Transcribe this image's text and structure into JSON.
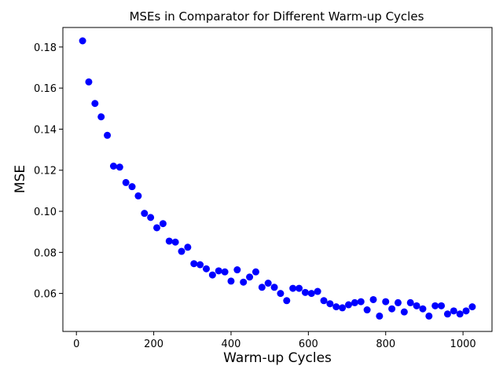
{
  "chart_data": {
    "type": "scatter",
    "title": "MSEs in Comparator for Different Warm-up Cycles",
    "xlabel": "Warm-up Cycles",
    "ylabel": "MSE",
    "xlim": [
      -35,
      1075
    ],
    "ylim": [
      0.0415,
      0.1895
    ],
    "xticks": [
      0,
      200,
      400,
      600,
      800,
      1000
    ],
    "xtick_labels": [
      "0",
      "200",
      "400",
      "600",
      "800",
      "1000"
    ],
    "yticks": [
      0.06,
      0.08,
      0.1,
      0.12,
      0.14,
      0.16,
      0.18
    ],
    "ytick_labels": [
      "0.06",
      "0.08",
      "0.10",
      "0.12",
      "0.14",
      "0.16",
      "0.18"
    ],
    "grid": false,
    "marker_color": "#0000ff",
    "series": [
      {
        "x": [
          16,
          32,
          48,
          64,
          80,
          96,
          112,
          128,
          144,
          160,
          176,
          192,
          208,
          224,
          240,
          256,
          272,
          288,
          304,
          320,
          336,
          352,
          368,
          384,
          400,
          416,
          432,
          448,
          464,
          480,
          496,
          512,
          528,
          544,
          560,
          576,
          592,
          608,
          624,
          640,
          656,
          672,
          688,
          704,
          720,
          736,
          752,
          768,
          784,
          800,
          816,
          832,
          848,
          864,
          880,
          896,
          912,
          928,
          944,
          960,
          976,
          992,
          1008,
          1024
        ],
        "y": [
          0.183,
          0.163,
          0.1525,
          0.146,
          0.137,
          0.122,
          0.1215,
          0.114,
          0.112,
          0.1075,
          0.099,
          0.097,
          0.092,
          0.094,
          0.0855,
          0.085,
          0.0805,
          0.0825,
          0.0745,
          0.074,
          0.072,
          0.069,
          0.071,
          0.0705,
          0.066,
          0.0715,
          0.0655,
          0.068,
          0.0705,
          0.063,
          0.065,
          0.063,
          0.06,
          0.0565,
          0.0625,
          0.0625,
          0.0605,
          0.06,
          0.061,
          0.0565,
          0.055,
          0.0535,
          0.053,
          0.0545,
          0.0555,
          0.056,
          0.052,
          0.057,
          0.049,
          0.056,
          0.0525,
          0.0555,
          0.051,
          0.0555,
          0.054,
          0.0525,
          0.049,
          0.054,
          0.054,
          0.05,
          0.0515,
          0.05,
          0.0515,
          0.0535
        ]
      }
    ]
  }
}
